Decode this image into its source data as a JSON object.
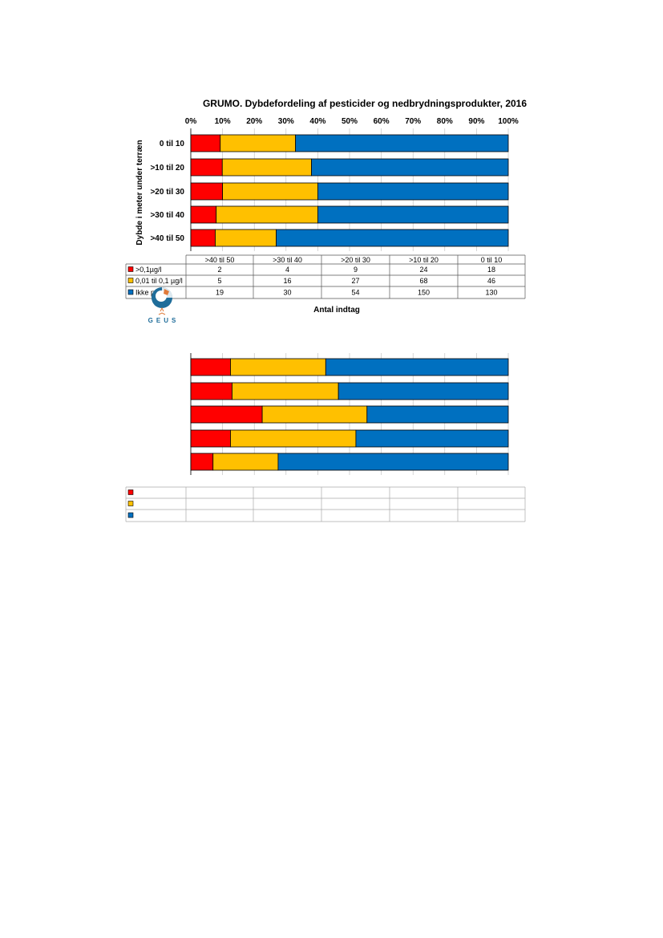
{
  "colors": {
    "red": "#FF0000",
    "yellow": "#FFC000",
    "blue": "#0070C0"
  },
  "logo": {
    "text": "GEUS",
    "icon": "geus-logo-icon"
  },
  "chart_data": [
    {
      "type": "bar",
      "orientation": "horizontal",
      "stacked": "percent",
      "title": "GRUMO. Dybdefordeling af pesticider og nedbrydningsprodukter, 2016",
      "ylabel": "Dybde i meter under  terræn",
      "xlabel": "Antal indtag",
      "xticks": [
        "0%",
        "10%",
        "20%",
        "30%",
        "40%",
        "50%",
        "60%",
        "70%",
        "80%",
        "90%",
        "100%"
      ],
      "xlim": [
        0,
        100
      ],
      "categories": [
        "0 til 10",
        ">10 til 20",
        ">20 til 30",
        ">30 til 40",
        ">40 til 50"
      ],
      "series": [
        {
          "name": ">0,1µg/l",
          "color": "#FF0000",
          "values": [
            18,
            24,
            9,
            4,
            2
          ]
        },
        {
          "name": "0,01 til 0,1 µg/l",
          "color": "#FFC000",
          "values": [
            46,
            68,
            27,
            16,
            5
          ]
        },
        {
          "name": "Ikke påvist",
          "color": "#0070C0",
          "values": [
            130,
            150,
            54,
            30,
            19
          ]
        }
      ],
      "table": {
        "columns": [
          ">40 til 50",
          ">30 til 40",
          ">20 til 30",
          ">10 til 20",
          "0 til 10"
        ],
        "rows": [
          {
            "label": ">0,1µg/l",
            "color": "#FF0000",
            "values": [
              "2",
              "4",
              "9",
              "24",
              "18"
            ]
          },
          {
            "label": "0,01 til 0,1 µg/l",
            "color": "#FFC000",
            "values": [
              "5",
              "16",
              "27",
              "68",
              "46"
            ]
          },
          {
            "label": "Ikke påvist",
            "color": "#0070C0",
            "values": [
              "19",
              "30",
              "54",
              "150",
              "130"
            ]
          }
        ]
      },
      "grid": true,
      "legend": "table"
    },
    {
      "type": "bar",
      "orientation": "horizontal",
      "stacked": "percent",
      "title": "",
      "xlim": [
        0,
        100
      ],
      "series": [
        {
          "color": "#FF0000",
          "values": [
            12.5,
            13,
            22.5,
            12.5,
            7
          ]
        },
        {
          "color": "#FFC000",
          "values": [
            30,
            33.5,
            33,
            39.5,
            20.5
          ]
        },
        {
          "color": "#0070C0",
          "values": [
            57.5,
            53.5,
            44.5,
            48,
            72.5
          ]
        }
      ],
      "table": {
        "rows": [
          {
            "color": "#FF0000"
          },
          {
            "color": "#FFC000"
          },
          {
            "color": "#0070C0"
          }
        ]
      },
      "grid": true,
      "legend": "table"
    }
  ]
}
